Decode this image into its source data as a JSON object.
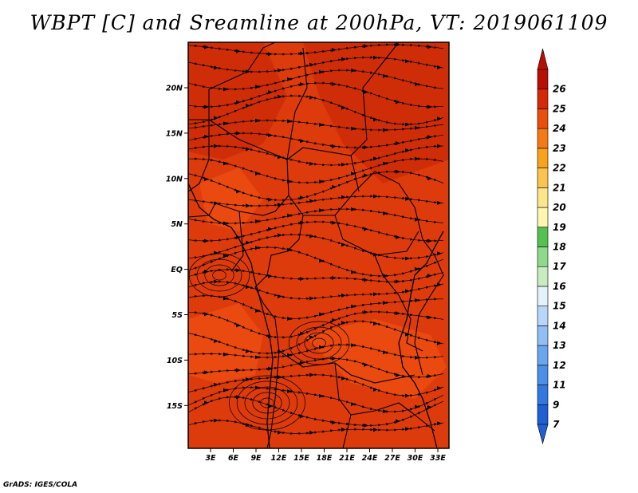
{
  "title": "WBPT [C] and Sreamline at 200hPa, VT: 2019061109",
  "credit": "GrADS: IGES/COLA",
  "map": {
    "lat_ticks": [
      "20N",
      "15N",
      "10N",
      "5N",
      "EQ",
      "5S",
      "10S",
      "15S"
    ],
    "lon_ticks": [
      "3E",
      "6E",
      "9E",
      "12E",
      "15E",
      "18E",
      "21E",
      "24E",
      "27E",
      "30E",
      "33E"
    ],
    "base_fill": "#dd3b0c",
    "darker_fill": "#cc2a08",
    "lighter_fill": "#ee4e10"
  },
  "colorbar": {
    "labels": [
      "7",
      "9",
      "11",
      "12",
      "13",
      "14",
      "15",
      "16",
      "17",
      "18",
      "19",
      "20",
      "21",
      "22",
      "23",
      "24",
      "25",
      "26"
    ],
    "colors": [
      "#1f5fd6",
      "#3378e0",
      "#4a8fe8",
      "#6aa6ee",
      "#8fbff3",
      "#b7d6f8",
      "#e3f2fb",
      "#c6ecc0",
      "#8fd98a",
      "#55c14f",
      "#fff7b0",
      "#fde58a",
      "#fbc44f",
      "#f9a21c",
      "#f57a12",
      "#ea4d0c",
      "#d52a06",
      "#b80f04"
    ]
  }
}
